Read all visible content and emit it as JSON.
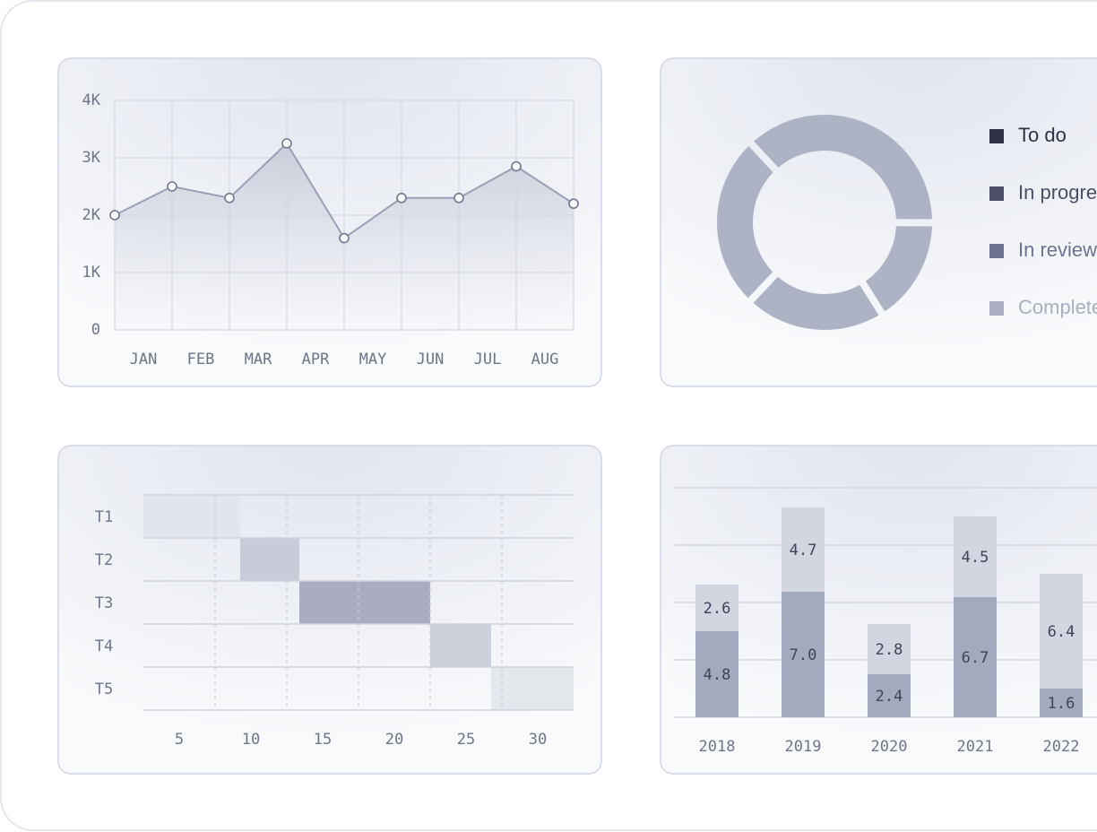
{
  "chart_data": [
    {
      "type": "line",
      "x": [
        0,
        1,
        2,
        3,
        4,
        5,
        6,
        7,
        8
      ],
      "values": [
        2000,
        2500,
        2300,
        3250,
        1600,
        2300,
        2300,
        2850,
        2200
      ],
      "xlim": [
        0,
        8
      ],
      "xticks": [
        {
          "value": 0.5,
          "label": "JAN"
        },
        {
          "value": 1.5,
          "label": "FEB"
        },
        {
          "value": 2.5,
          "label": "MAR"
        },
        {
          "value": 3.5,
          "label": "APR"
        },
        {
          "value": 4.5,
          "label": "MAY"
        },
        {
          "value": 5.5,
          "label": "JUN"
        },
        {
          "value": 6.5,
          "label": "JUL"
        },
        {
          "value": 7.5,
          "label": "AUG"
        }
      ],
      "ylim": [
        0,
        4000
      ],
      "yticks": [
        0,
        {
          "value": 1000,
          "label": "1K"
        },
        {
          "value": 2000,
          "label": "2K"
        },
        {
          "value": 3000,
          "label": "3K"
        },
        {
          "value": 4000,
          "label": "4K"
        }
      ],
      "color": "#9aa0b5",
      "grid": true
    },
    {
      "type": "pie",
      "categories": [
        "To do",
        "In progress",
        "In review",
        "Completed"
      ],
      "values": [
        37,
        16,
        21,
        26
      ],
      "colors": [
        "#2e3248",
        "#4b4f69",
        "#6d7290",
        "#a9aec0"
      ],
      "segment_color": "#adb2c4",
      "donut": true,
      "legend": "right"
    },
    {
      "type": "gantt",
      "categories": [
        "T1",
        "T2",
        "T3",
        "T4",
        "T5"
      ],
      "start": [
        2.5,
        9.25,
        13.375,
        22.5,
        26.75
      ],
      "end": [
        9.25,
        13.375,
        22.5,
        26.75,
        32.5
      ],
      "colors": [
        "#e1e5ed",
        "#c8ccd9",
        "#a9adbf",
        "#cdd1dc",
        "#e4e7ec"
      ],
      "xlim": [
        2.5,
        32.5
      ],
      "xticks": [
        5,
        10,
        15,
        20,
        25,
        30
      ],
      "grid": true
    },
    {
      "type": "stacked-bar",
      "categories": [
        "2018",
        "2019",
        "2020",
        "2021",
        "2022"
      ],
      "series": [
        {
          "color": "#a2aabd",
          "values": [
            4.8,
            7.0,
            2.4,
            6.7,
            1.6
          ],
          "value_labels": [
            "4.8",
            "7.0",
            "2.4",
            "6.7",
            "1.6"
          ]
        },
        {
          "color": "#d1d6e1",
          "values": [
            2.6,
            4.7,
            2.8,
            4.5,
            6.4
          ],
          "value_labels": [
            "2.6",
            "4.7",
            "2.8",
            "4.5",
            "6.4"
          ]
        }
      ],
      "ylim": [
        0,
        12.8
      ],
      "yticks": [
        0,
        3.2,
        6.4,
        9.6,
        12.8
      ],
      "grid": true
    }
  ]
}
